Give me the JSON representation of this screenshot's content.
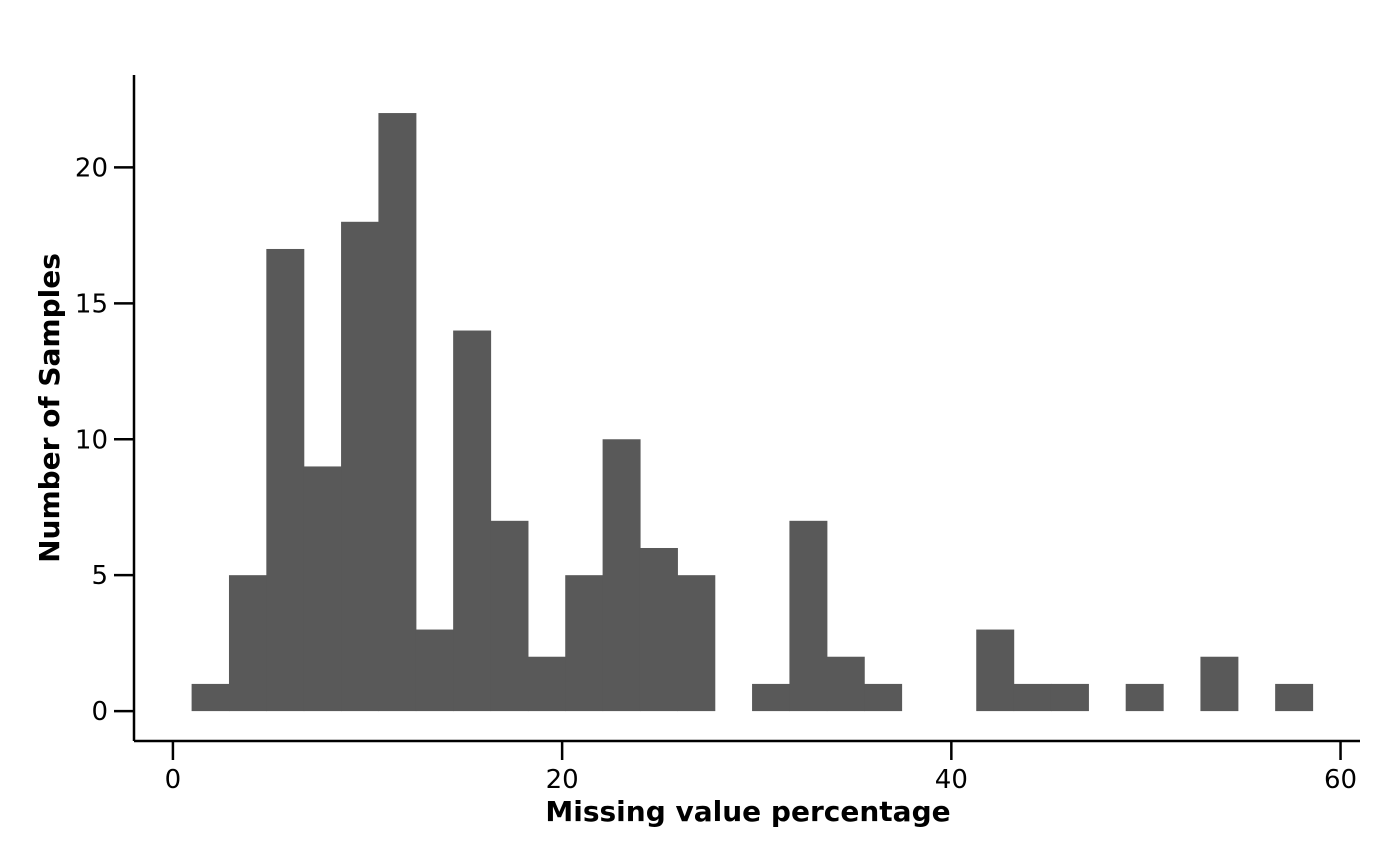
{
  "chart_data": {
    "type": "bar",
    "subtype": "histogram",
    "bin_width": 1.92,
    "bin_start": 0.96,
    "bin_starts": [
      0.96,
      2.88,
      4.8,
      6.72,
      8.64,
      10.56,
      12.48,
      14.4,
      16.32,
      18.24,
      20.16,
      22.08,
      24.0,
      25.92,
      27.84,
      29.76,
      31.68,
      33.6,
      35.52,
      37.44,
      39.36,
      41.28,
      43.2,
      45.12,
      47.04,
      48.96,
      50.88,
      52.8,
      54.72,
      56.64
    ],
    "counts": [
      1,
      5,
      17,
      9,
      18,
      22,
      3,
      14,
      7,
      2,
      5,
      10,
      6,
      5,
      0,
      1,
      7,
      2,
      1,
      0,
      0,
      3,
      1,
      1,
      0,
      1,
      0,
      2,
      0,
      1
    ],
    "xlabel": "Missing value percentage",
    "ylabel": "Number of Samples",
    "xlim": [
      -2,
      61
    ],
    "ylim": [
      -1.1,
      23.4
    ],
    "xticks": [
      0,
      20,
      40,
      60
    ],
    "xtick_labels": [
      "0",
      "20",
      "40",
      "60"
    ],
    "yticks": [
      0,
      5,
      10,
      15,
      20
    ],
    "ytick_labels": [
      "0",
      "5",
      "10",
      "15",
      "20"
    ],
    "bar_color": "#595959",
    "grid": false
  }
}
